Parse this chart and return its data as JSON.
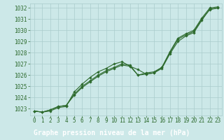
{
  "x_values": [
    0,
    1,
    2,
    3,
    4,
    5,
    6,
    7,
    8,
    9,
    10,
    11,
    12,
    13,
    14,
    15,
    16,
    17,
    18,
    19,
    20,
    21,
    22,
    23
  ],
  "line1": [
    1022.8,
    1022.7,
    1022.8,
    1023.1,
    1023.2,
    1024.5,
    1025.2,
    1025.8,
    1026.3,
    1026.6,
    1027.0,
    1027.2,
    1026.8,
    1026.0,
    1026.2,
    1026.3,
    1026.7,
    1028.1,
    1029.3,
    1029.7,
    1030.0,
    1031.1,
    1032.0,
    1032.1
  ],
  "line2": [
    1022.8,
    1022.7,
    1022.9,
    1023.2,
    1023.3,
    1024.3,
    1025.0,
    1025.5,
    1026.0,
    1026.4,
    1026.7,
    1027.0,
    1026.9,
    1026.0,
    1026.1,
    1026.2,
    1026.6,
    1027.9,
    1029.0,
    1029.5,
    1029.8,
    1030.9,
    1031.9,
    1032.0
  ],
  "line3": [
    1022.8,
    1022.7,
    1022.9,
    1023.2,
    1023.3,
    1024.2,
    1024.9,
    1025.4,
    1025.9,
    1026.3,
    1026.6,
    1026.9,
    1026.8,
    1026.5,
    1026.1,
    1026.2,
    1026.7,
    1028.0,
    1029.2,
    1029.6,
    1029.9,
    1031.0,
    1031.85,
    1032.0
  ],
  "line_color": "#2d6a2d",
  "marker_color": "#2d6a2d",
  "bg_color": "#cce8e8",
  "grid_color": "#aacccc",
  "bar_color": "#2d6a2d",
  "bar_text_color": "#ffffff",
  "ylim": [
    1022.4,
    1032.4
  ],
  "yticks": [
    1023,
    1024,
    1025,
    1026,
    1027,
    1028,
    1029,
    1030,
    1031,
    1032
  ],
  "xlim": [
    -0.5,
    23.5
  ],
  "xticks": [
    0,
    1,
    2,
    3,
    4,
    5,
    6,
    7,
    8,
    9,
    10,
    11,
    12,
    13,
    14,
    15,
    16,
    17,
    18,
    19,
    20,
    21,
    22,
    23
  ],
  "xlabel": "Graphe pression niveau de la mer (hPa)",
  "tick_fontsize": 5.5,
  "xlabel_fontsize": 7.0
}
